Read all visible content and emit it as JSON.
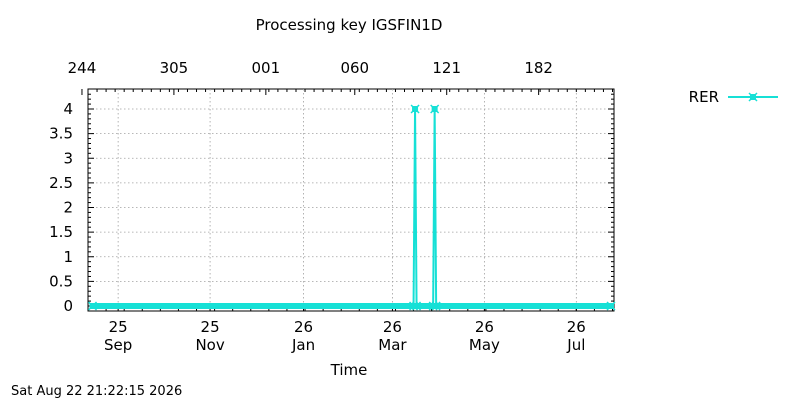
{
  "chart_data": {
    "type": "line",
    "title": "Processing key IGSFIN1D",
    "xlabel": "Time",
    "ylabel": "",
    "ylim": [
      0,
      4.4
    ],
    "y_ticks": [
      "0",
      "0.5",
      "1",
      "1.5",
      "2",
      "2.5",
      "3",
      "3.5",
      "4"
    ],
    "y_tick_values": [
      0,
      0.5,
      1,
      1.5,
      2,
      2.5,
      3,
      3.5,
      4
    ],
    "x_axis": {
      "min": "2025-09-05",
      "max": "2026-08-20",
      "bottom_ticks": [
        {
          "date": "2025-09-25",
          "line1": "25",
          "line2": "Sep"
        },
        {
          "date": "2025-11-25",
          "line1": "25",
          "line2": "Nov"
        },
        {
          "date": "2026-01-26",
          "line1": "26",
          "line2": "Jan"
        },
        {
          "date": "2026-03-26",
          "line1": "26",
          "line2": "Mar"
        },
        {
          "date": "2026-05-26",
          "line1": "26",
          "line2": "May"
        },
        {
          "date": "2026-07-26",
          "line1": "26",
          "line2": "Jul"
        }
      ],
      "top_ticks": [
        {
          "date": "2025-09-01",
          "label": "244"
        },
        {
          "date": "2025-11-01",
          "label": "305"
        },
        {
          "date": "2026-01-01",
          "label": "001"
        },
        {
          "date": "2026-03-01",
          "label": "060"
        },
        {
          "date": "2026-05-01",
          "label": "121"
        },
        {
          "date": "2026-07-01",
          "label": "182"
        }
      ]
    },
    "grid": true,
    "legend_position": "top-right",
    "series": [
      {
        "name": "RER",
        "color": "#16e0d6",
        "points": [
          {
            "x": "2025-09-08",
            "y": 0
          },
          {
            "x": "2026-04-09",
            "y": 0
          },
          {
            "x": "2026-04-10",
            "y": 4
          },
          {
            "x": "2026-04-11",
            "y": 0
          },
          {
            "x": "2026-04-22",
            "y": 0
          },
          {
            "x": "2026-04-23",
            "y": 4
          },
          {
            "x": "2026-04-24",
            "y": 0
          },
          {
            "x": "2026-08-18",
            "y": 0
          }
        ]
      }
    ]
  },
  "timestamp": "Sat Aug 22 21:22:15 2026"
}
